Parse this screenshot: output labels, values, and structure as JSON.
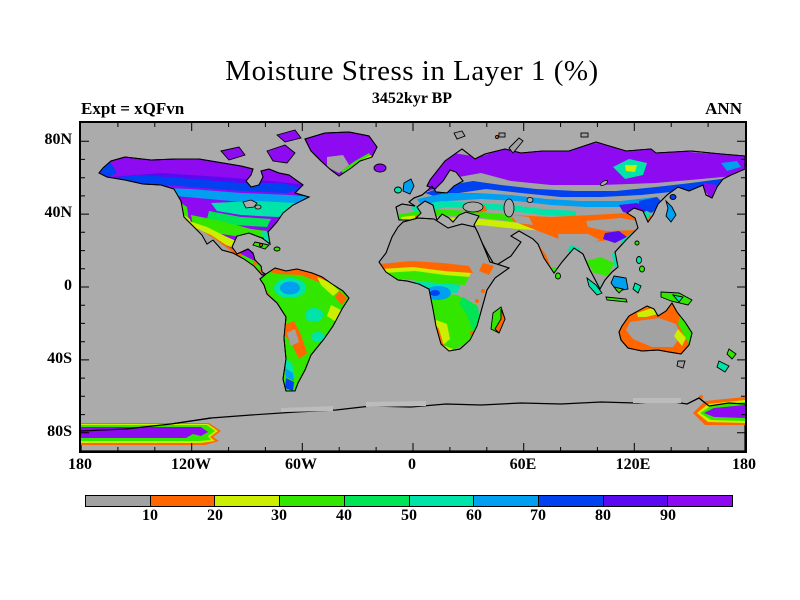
{
  "figure": {
    "title": "Moisture Stress in Layer 1 (%)",
    "subtitle": "3452kyr BP",
    "experiment_label": "Expt = xQFvn",
    "season_label": "ANN"
  },
  "axes": {
    "lat_ticks": [
      {
        "label": "80N"
      },
      {
        "label": "40N"
      },
      {
        "label": "0"
      },
      {
        "label": "40S"
      },
      {
        "label": "80S"
      }
    ],
    "lon_ticks": [
      {
        "label": "180"
      },
      {
        "label": "120W"
      },
      {
        "label": "60W"
      },
      {
        "label": "0"
      },
      {
        "label": "60E"
      },
      {
        "label": "120E"
      },
      {
        "label": "180"
      }
    ]
  },
  "colorbar": {
    "tick_labels": [
      "10",
      "20",
      "30",
      "40",
      "50",
      "60",
      "70",
      "80",
      "90"
    ],
    "colors": [
      "#A2A2A2",
      "#FF6600",
      "#CCEE00",
      "#33E600",
      "#00E455",
      "#00E4AA",
      "#009FF0",
      "#0041F0",
      "#5A0AF0",
      "#8E0AF0"
    ]
  },
  "map": {
    "ocean_color": "#ABABAB",
    "shelf_color": "#BCBCBC",
    "coast_color": "#000000"
  },
  "chart_data": {
    "type": "heatmap",
    "title": "Moisture Stress in Layer 1 (%)",
    "subtitle": "3452kyr BP",
    "annotations": [
      "Expt = xQFvn",
      "ANN"
    ],
    "projection": "equirectangular world map, 180W-180E, 90N-90S",
    "x": {
      "ticks": [
        "180",
        "120W",
        "60W",
        "0",
        "60E",
        "120E",
        "180"
      ],
      "range_deg": [
        -180,
        180
      ],
      "minor_tick_deg": 20
    },
    "y": {
      "ticks": [
        "80N",
        "40N",
        "0",
        "40S",
        "80S"
      ],
      "range_deg": [
        -90,
        90
      ],
      "minor_tick_deg": 10
    },
    "levels": [
      10,
      20,
      30,
      40,
      50,
      60,
      70,
      80,
      90
    ],
    "palette": [
      "#A2A2A2",
      "#FF6600",
      "#CCEE00",
      "#33E600",
      "#00E455",
      "#00E4AA",
      "#009FF0",
      "#0041F0",
      "#5A0AF0",
      "#8E0AF0"
    ],
    "legend_position": "bottom",
    "region_values": [
      {
        "region": "Oceans and no-data land (Sahara, Arabia, Iran, India interior, Gobi, Tibet, central Australia, SW US / N Mexico desert, Horn of Africa, Antarctica interior)",
        "value": "<10 (gray)"
      },
      {
        "region": "Sahel belt, Kazakh steppe, ring around Australian interior, Mexico Pacific coast, Peru/Atacama coast, Ethiopia, north coast of South America",
        "value": "10-20 (orange)"
      },
      {
        "region": "SW US fringe, south Iberia, east Brazil, Namibia/Kalahari, north Australia patches, south Russia steppe edge",
        "value": "20-30 (yellow-green)"
      },
      {
        "region": "Most of South America, West and South Africa, SE Asia, central US plains, southern Europe, east Australia coast",
        "value": "30-50 (greens)"
      },
      {
        "region": "Eastern US, east China, SE Brazil, equatorial East Africa, central Siberia patch",
        "value": "50-60 (turquoise)"
      },
      {
        "region": "NW Europe, northern US border, Congo basin, west Amazon, Indonesia, Japan, Manchuria",
        "value": "60-80 (blues)"
      },
      {
        "region": "Canada, Alaska, Greenland, Iceland, Scandinavia, Siberia, Patagonia tip, 80S Antarctic belts at map edges",
        "value": "80-100 (violet/purple)"
      }
    ]
  }
}
